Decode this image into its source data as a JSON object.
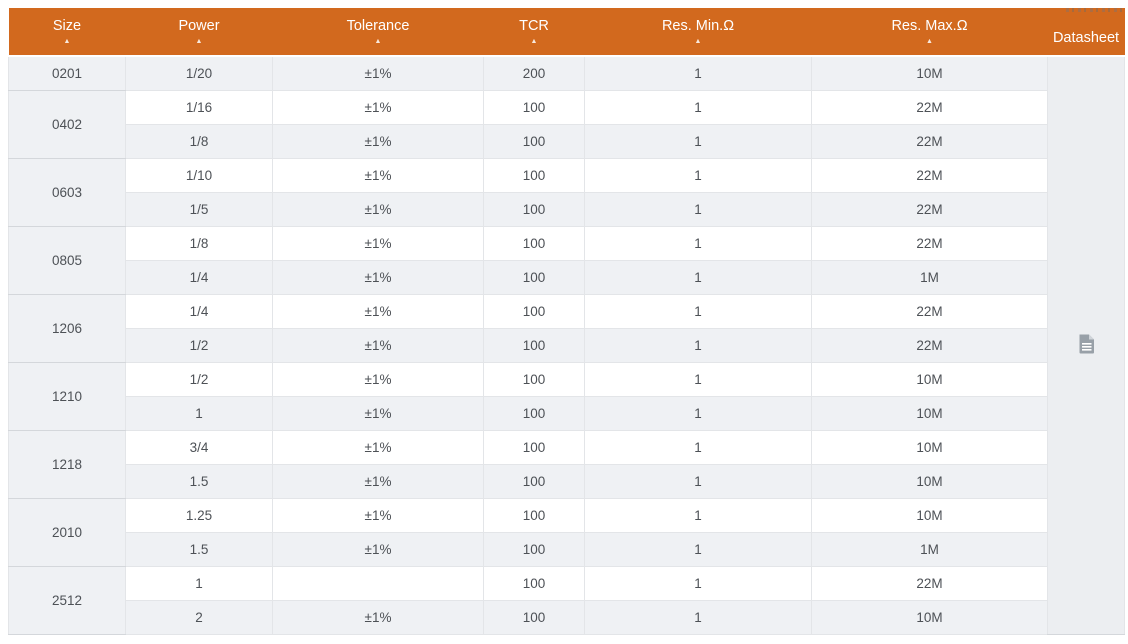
{
  "page": {
    "clipped_fragment_note": "partially cut-off text at top-right edge"
  },
  "header": {
    "sort_glyph": "▲",
    "columns": [
      {
        "label": "Size",
        "sortable": true
      },
      {
        "label": "Power",
        "sortable": true
      },
      {
        "label": "Tolerance",
        "sortable": true
      },
      {
        "label": "TCR",
        "sortable": true
      },
      {
        "label": "Res. Min.Ω",
        "sortable": true
      },
      {
        "label": "Res. Max.Ω",
        "sortable": true
      },
      {
        "label": "Datasheet",
        "sortable": false
      }
    ]
  },
  "table": {
    "datasheet_icon": "document-icon",
    "groups": [
      {
        "size": "0201",
        "rows": [
          {
            "power": "1/20",
            "tolerance": "±1%",
            "tcr": "200",
            "res_min": "1",
            "res_max": "10M"
          }
        ]
      },
      {
        "size": "0402",
        "rows": [
          {
            "power": "1/16",
            "tolerance": "±1%",
            "tcr": "100",
            "res_min": "1",
            "res_max": "22M"
          },
          {
            "power": "1/8",
            "tolerance": "±1%",
            "tcr": "100",
            "res_min": "1",
            "res_max": "22M"
          }
        ]
      },
      {
        "size": "0603",
        "rows": [
          {
            "power": "1/10",
            "tolerance": "±1%",
            "tcr": "100",
            "res_min": "1",
            "res_max": "22M"
          },
          {
            "power": "1/5",
            "tolerance": "±1%",
            "tcr": "100",
            "res_min": "1",
            "res_max": "22M"
          }
        ]
      },
      {
        "size": "0805",
        "rows": [
          {
            "power": "1/8",
            "tolerance": "±1%",
            "tcr": "100",
            "res_min": "1",
            "res_max": "22M"
          },
          {
            "power": "1/4",
            "tolerance": "±1%",
            "tcr": "100",
            "res_min": "1",
            "res_max": "1M"
          }
        ]
      },
      {
        "size": "1206",
        "rows": [
          {
            "power": "1/4",
            "tolerance": "±1%",
            "tcr": "100",
            "res_min": "1",
            "res_max": "22M"
          },
          {
            "power": "1/2",
            "tolerance": "±1%",
            "tcr": "100",
            "res_min": "1",
            "res_max": "22M"
          }
        ]
      },
      {
        "size": "1210",
        "rows": [
          {
            "power": "1/2",
            "tolerance": "±1%",
            "tcr": "100",
            "res_min": "1",
            "res_max": "10M"
          },
          {
            "power": "1",
            "tolerance": "±1%",
            "tcr": "100",
            "res_min": "1",
            "res_max": "10M"
          }
        ]
      },
      {
        "size": "1218",
        "rows": [
          {
            "power": "3/4",
            "tolerance": "±1%",
            "tcr": "100",
            "res_min": "1",
            "res_max": "10M"
          },
          {
            "power": "1.5",
            "tolerance": "±1%",
            "tcr": "100",
            "res_min": "1",
            "res_max": "10M"
          }
        ]
      },
      {
        "size": "2010",
        "rows": [
          {
            "power": "1.25",
            "tolerance": "±1%",
            "tcr": "100",
            "res_min": "1",
            "res_max": "10M"
          },
          {
            "power": "1.5",
            "tolerance": "±1%",
            "tcr": "100",
            "res_min": "1",
            "res_max": "1M"
          }
        ]
      },
      {
        "size": "2512",
        "rows": [
          {
            "power": "1",
            "tolerance": "",
            "tcr": "100",
            "res_min": "1",
            "res_max": "22M"
          },
          {
            "power": "2",
            "tolerance": "±1%",
            "tcr": "100",
            "res_min": "1",
            "res_max": "10M"
          }
        ]
      }
    ]
  },
  "colors": {
    "header_bg": "#d2691e",
    "header_text": "#ffffff",
    "row_alt_bg": "#eff1f4",
    "row_bg": "#ffffff",
    "body_text": "#4d5156",
    "border": "#e3e5e8",
    "border_strong": "#d4d7db",
    "icon_gray": "#98a0a8"
  }
}
